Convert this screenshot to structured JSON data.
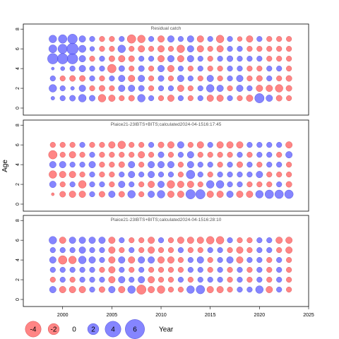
{
  "chart_data": {
    "type": "scatter",
    "subtype": "bubble-residual",
    "ylabel": "Age",
    "xlim": [
      1996,
      2025
    ],
    "ylim": [
      -0.5,
      8.3
    ],
    "x_ticks": [
      2000,
      2005,
      2010,
      2015,
      2020,
      2025
    ],
    "y_ticks": [
      0,
      2,
      4,
      6,
      8
    ],
    "colors": {
      "positive": "#6666ff",
      "negative": "#ff6666"
    },
    "legend": {
      "values": [
        -4,
        -2,
        0,
        2,
        4,
        6
      ],
      "labels": [
        "-4",
        "-2",
        "0",
        "2",
        "4",
        "6"
      ],
      "title": "Year"
    },
    "panels": [
      {
        "title": "Residual catch",
        "years": [
          1999,
          2000,
          2001,
          2002,
          2003,
          2004,
          2005,
          2006,
          2007,
          2008,
          2009,
          2010,
          2011,
          2012,
          2013,
          2014,
          2015,
          2016,
          2017,
          2018,
          2019,
          2020,
          2021,
          2022,
          2023
        ],
        "ages": [
          1,
          2,
          3,
          4,
          5,
          6,
          7
        ],
        "residuals": [
          [
            0.5,
            1.0,
            1.2,
            2.0,
            1.2,
            -2.0,
            -1.5,
            -1.0,
            -1.2,
            2.0,
            1.0,
            -1.0,
            -1.5,
            1.0,
            -1.0,
            1.0,
            -1.5,
            -1.5,
            1.0,
            -1.0,
            -1.5,
            3.0,
            1.5,
            -1.2,
            -1.0
          ],
          [
            2.0,
            1.0,
            0.5,
            1.5,
            -1.0,
            -1.2,
            -1.0,
            1.5,
            1.5,
            1.2,
            -1.0,
            1.0,
            1.0,
            -1.5,
            -1.0,
            1.0,
            2.0,
            1.5,
            -1.0,
            1.5,
            1.0,
            -1.5,
            -1.5,
            -2.0,
            -1.2
          ],
          [
            1.0,
            -1.0,
            -1.2,
            -1.2,
            1.0,
            -1.0,
            1.0,
            1.5,
            -1.5,
            1.5,
            -1.0,
            1.2,
            -1.0,
            1.5,
            1.0,
            -1.0,
            1.5,
            -1.0,
            1.0,
            1.5,
            -1.0,
            -1.2,
            1.0,
            -1.0,
            -1.2
          ],
          [
            0.3,
            0.6,
            1.0,
            1.5,
            1.0,
            1.0,
            -2.5,
            1.2,
            -1.0,
            1.2,
            -1.0,
            1.5,
            -1.5,
            1.0,
            -1.0,
            1.0,
            -1.0,
            -1.0,
            1.0,
            1.0,
            -1.0,
            -1.0,
            1.0,
            1.0,
            -1.0
          ],
          [
            3.8,
            3.8,
            3.8,
            1.5,
            -1.0,
            1.0,
            -1.2,
            -1.5,
            -1.2,
            1.0,
            1.0,
            -1.5,
            1.5,
            -1.5,
            1.5,
            1.0,
            -1.0,
            1.0,
            1.2,
            1.0,
            1.0,
            1.0,
            -1.0,
            -1.0,
            -1.0
          ],
          [
            2.2,
            3.0,
            4.5,
            1.8,
            0.8,
            -1.0,
            -1.0,
            2.0,
            -1.0,
            -1.5,
            -1.0,
            -1.5,
            -1.0,
            -2.0,
            1.5,
            -1.5,
            -1.0,
            -1.5,
            1.0,
            1.0,
            -1.0,
            -1.0,
            -1.0,
            -1.0,
            -1.0
          ],
          [
            2.0,
            2.5,
            3.2,
            1.5,
            1.0,
            -1.0,
            -1.0,
            1.0,
            -2.5,
            -2.0,
            1.0,
            -1.5,
            1.5,
            1.0,
            1.5,
            -1.5,
            1.0,
            -2.0,
            1.0,
            -0.8,
            -1.5,
            1.0,
            -1.0,
            -1.0,
            -1.0
          ]
        ]
      },
      {
        "title": "Plaice21-23IBTS+BITS;calculated2024-04-1516:17:45",
        "years": [
          1999,
          2000,
          2001,
          2002,
          2003,
          2004,
          2005,
          2006,
          2007,
          2008,
          2009,
          2010,
          2011,
          2012,
          2013,
          2014,
          2015,
          2016,
          2017,
          2018,
          2019,
          2020,
          2021,
          2022,
          2023
        ],
        "ages": [
          1,
          2,
          3,
          4,
          5,
          6
        ],
        "residuals": [
          [
            -0.3,
            -1.2,
            -1.5,
            -1.5,
            1.0,
            -1.2,
            1.5,
            -1.2,
            2.0,
            -1.0,
            1.5,
            2.0,
            -1.5,
            -1.5,
            3.0,
            3.0,
            -1.5,
            -1.5,
            1.5,
            -1.5,
            -1.5,
            2.0,
            2.5,
            2.5,
            2.5
          ],
          [
            1.5,
            -1.0,
            1.0,
            -2.0,
            1.0,
            1.0,
            -1.0,
            1.5,
            1.0,
            -1.0,
            -1.5,
            1.5,
            -2.0,
            -1.5,
            -1.5,
            -1.0,
            2.0,
            2.0,
            1.0,
            1.0,
            -1.0,
            -1.0,
            -1.0,
            1.0,
            -1.2
          ],
          [
            -2.0,
            -1.5,
            -1.5,
            -1.0,
            1.0,
            -1.0,
            -1.0,
            1.0,
            1.5,
            1.0,
            1.5,
            1.0,
            1.0,
            -1.0,
            2.5,
            1.0,
            -1.0,
            1.0,
            1.0,
            1.0,
            1.0,
            1.5,
            -1.0,
            -1.0,
            -1.0
          ],
          [
            1.5,
            1.5,
            1.0,
            1.0,
            1.5,
            -1.0,
            -1.0,
            -1.2,
            1.5,
            -1.0,
            1.5,
            1.5,
            1.5,
            -1.0,
            1.5,
            1.0,
            1.0,
            -1.0,
            1.0,
            -1.2,
            1.0,
            -1.0,
            1.0,
            1.0,
            -1.0
          ],
          [
            -2.5,
            -1.0,
            -1.5,
            -1.0,
            1.0,
            -1.0,
            -1.0,
            -1.0,
            -1.0,
            -1.5,
            -1.0,
            1.2,
            -1.0,
            1.0,
            1.5,
            -1.0,
            -1.0,
            -1.0,
            -1.0,
            1.0,
            -1.0,
            1.0,
            1.0,
            -1.0,
            1.5
          ],
          [
            -1.0,
            -1.0,
            -1.0,
            1.0,
            -1.0,
            -1.0,
            -1.5,
            -2.0,
            -1.0,
            -1.0,
            1.0,
            -1.2,
            -1.5,
            1.5,
            -1.0,
            -1.5,
            1.0,
            -1.5,
            -1.5,
            -1.5,
            1.0,
            1.0,
            1.0,
            1.0,
            -1.5
          ]
        ]
      },
      {
        "title": "Plaice21-23IBTS+BITS;calculated2024-04-1516:28:10",
        "years": [
          1999,
          2000,
          2001,
          2002,
          2003,
          2004,
          2005,
          2006,
          2007,
          2008,
          2009,
          2010,
          2011,
          2012,
          2013,
          2014,
          2015,
          2016,
          2017,
          2018,
          2019,
          2020,
          2021,
          2022,
          2023
        ],
        "ages": [
          1,
          2,
          3,
          4,
          5,
          6
        ],
        "residuals": [
          [
            1.5,
            -1.5,
            -1.5,
            -1.5,
            1.0,
            -1.2,
            1.5,
            -1.5,
            2.0,
            -3.0,
            -1.5,
            -2.0,
            -1.0,
            -1.0,
            2.0,
            2.5,
            -1.5,
            -1.5,
            -1.0,
            1.0,
            1.0,
            2.0,
            -1.5,
            1.0,
            -1.0
          ],
          [
            -1.0,
            1.0,
            -1.0,
            1.0,
            1.0,
            1.0,
            -1.5,
            1.5,
            1.0,
            1.5,
            -1.5,
            -1.0,
            -1.0,
            1.0,
            -1.0,
            1.0,
            1.0,
            1.0,
            -1.0,
            1.0,
            -1.0,
            1.0,
            -1.0,
            1.0,
            -1.0
          ],
          [
            1.0,
            1.0,
            1.0,
            1.0,
            1.0,
            -1.0,
            -1.5,
            1.0,
            -1.0,
            1.0,
            -1.0,
            -1.0,
            -1.0,
            -1.0,
            1.0,
            1.0,
            -1.0,
            1.0,
            -1.0,
            1.0,
            -1.0,
            1.0,
            -1.0,
            1.0,
            -1.0
          ],
          [
            1.5,
            -2.5,
            -2.0,
            2.0,
            1.5,
            1.0,
            -1.5,
            1.5,
            -1.5,
            1.5,
            1.5,
            -1.5,
            -1.5,
            -1.0,
            1.0,
            1.5,
            -1.0,
            1.0,
            1.5,
            -1.5,
            1.0,
            1.0,
            -1.0,
            1.0,
            -1.0
          ],
          [
            1.0,
            1.0,
            1.0,
            1.5,
            1.0,
            1.0,
            -1.5,
            -1.0,
            1.0,
            -1.0,
            -1.5,
            -1.0,
            -1.0,
            1.0,
            -1.0,
            -1.0,
            1.0,
            1.0,
            -1.0,
            -1.5,
            -1.0,
            1.0,
            1.0,
            -1.0,
            -1.5
          ],
          [
            2.0,
            -1.5,
            1.5,
            1.5,
            1.5,
            1.5,
            -1.5,
            1.0,
            -1.0,
            -1.0,
            -1.5,
            1.0,
            -1.0,
            -1.5,
            -1.5,
            -1.5,
            -2.0,
            -2.0,
            1.0,
            -1.0,
            -1.0,
            1.0,
            1.0,
            -1.5,
            -1.5
          ]
        ]
      }
    ]
  }
}
